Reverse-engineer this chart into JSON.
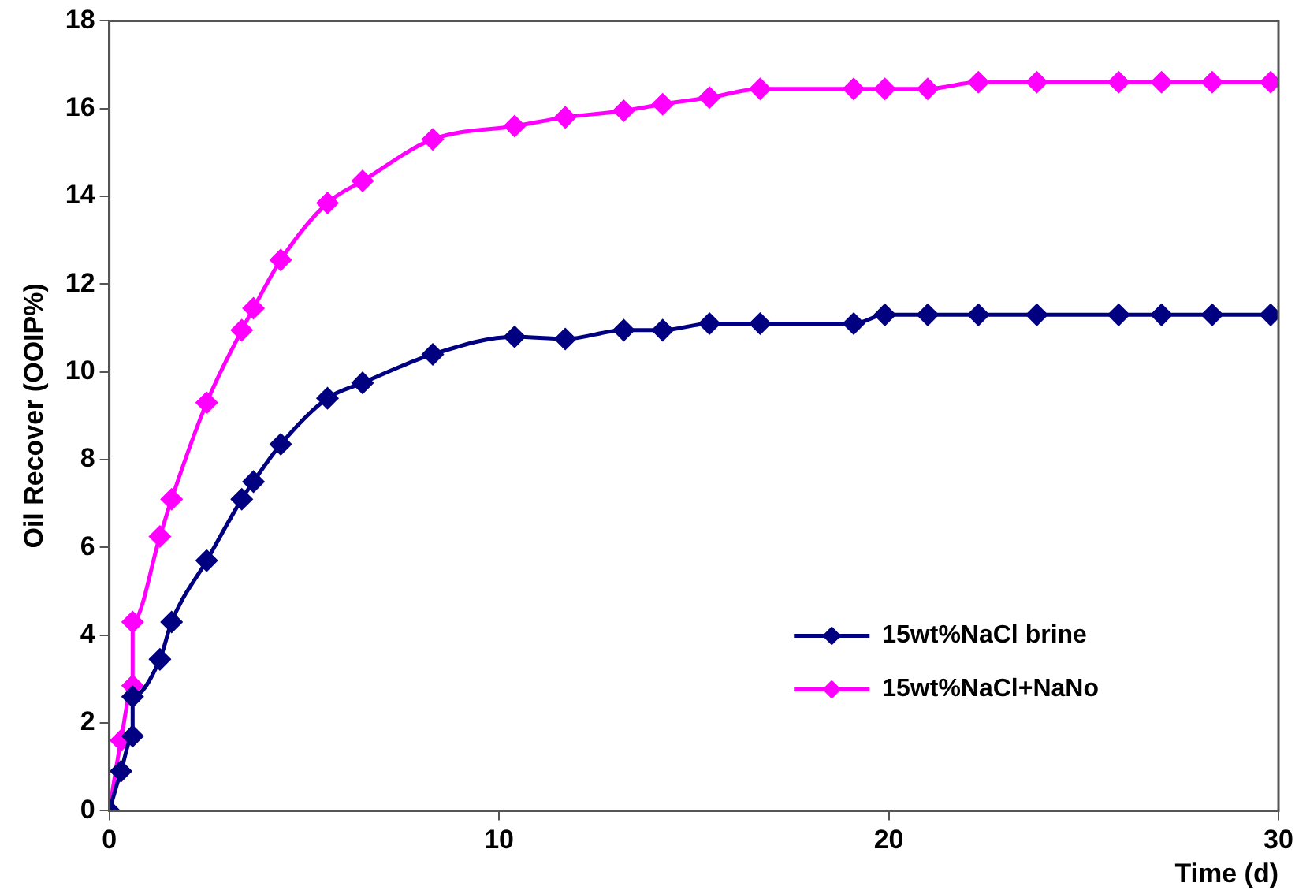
{
  "chart_data": {
    "type": "line",
    "xlabel": "Time (d)",
    "ylabel": "Oil Recover (OOIP%)",
    "x": [
      0,
      0.3,
      0.6,
      0.6,
      1.3,
      1.6,
      2.5,
      3.4,
      3.7,
      4.4,
      5.6,
      6.5,
      8.3,
      10.4,
      11.7,
      13.2,
      14.2,
      15.4,
      16.7,
      19.1,
      19.9,
      21.0,
      22.3,
      23.8,
      25.9,
      27.0,
      28.3,
      29.8
    ],
    "series": [
      {
        "name": "15wt%NaCl brine",
        "color": "#000080",
        "values": [
          0,
          0.9,
          1.7,
          2.6,
          3.45,
          4.3,
          5.7,
          7.1,
          7.5,
          8.35,
          9.4,
          9.75,
          10.4,
          10.8,
          10.75,
          10.95,
          10.95,
          11.1,
          11.1,
          11.1,
          11.3,
          11.3,
          11.3,
          11.3,
          11.3,
          11.3,
          11.3,
          11.3
        ]
      },
      {
        "name": "15wt%NaCl+NaNo",
        "color": "#ff00ff",
        "values": [
          0,
          1.6,
          2.85,
          4.3,
          6.25,
          7.1,
          9.3,
          10.95,
          11.45,
          12.55,
          13.85,
          14.35,
          15.3,
          15.6,
          15.8,
          15.95,
          16.1,
          16.25,
          16.45,
          16.45,
          16.45,
          16.45,
          16.6,
          16.6,
          16.6,
          16.6,
          16.6,
          16.6
        ]
      }
    ],
    "xlim": [
      0,
      30
    ],
    "xticks": [
      0,
      10,
      20,
      30
    ],
    "ylim": [
      0,
      18
    ],
    "yticks": [
      0,
      2,
      4,
      6,
      8,
      10,
      12,
      14,
      16,
      18
    ],
    "grid": false,
    "legend": "bottom right",
    "marker": "diamond",
    "line_style": "solid"
  }
}
